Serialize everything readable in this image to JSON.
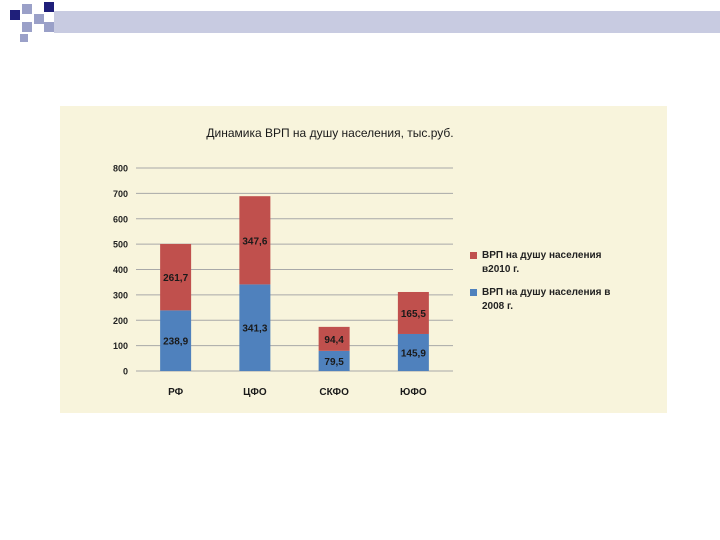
{
  "colors": {
    "series_2010": "#c0504d",
    "series_2008": "#4f81bd",
    "panel_bg": "#f8f4dc",
    "deco_dark": "#1f1f7a",
    "deco_light": "#9aa0c8"
  },
  "chart_data": {
    "type": "bar",
    "stacked": true,
    "title": "Динамика ВРП на душу населения, тыс.руб.",
    "xlabel": "",
    "ylabel": "",
    "categories": [
      "РФ",
      "ЦФО",
      "СКФО",
      "ЮФО"
    ],
    "series": [
      {
        "name": "ВРП на душу населения в 2008 г.",
        "legend_lines": [
          "ВРП на душу населения в",
          "2008 г."
        ],
        "color": "#4f81bd",
        "values": [
          238.9,
          341.3,
          79.5,
          145.9
        ],
        "labels": [
          "238,9",
          "341,3",
          "79,5",
          "145,9"
        ]
      },
      {
        "name": "ВРП на душу населения в2010 г.",
        "legend_lines": [
          "ВРП на душу населения",
          "в2010 г."
        ],
        "color": "#c0504d",
        "values": [
          261.7,
          347.6,
          94.4,
          165.5
        ],
        "labels": [
          "261,7",
          "347,6",
          "94,4",
          "165,5"
        ]
      }
    ],
    "ylim": [
      0,
      800
    ],
    "yticks": [
      "0",
      "100",
      "200",
      "300",
      "400",
      "500",
      "600",
      "700",
      "800"
    ],
    "grid": true,
    "legend_position": "right"
  }
}
